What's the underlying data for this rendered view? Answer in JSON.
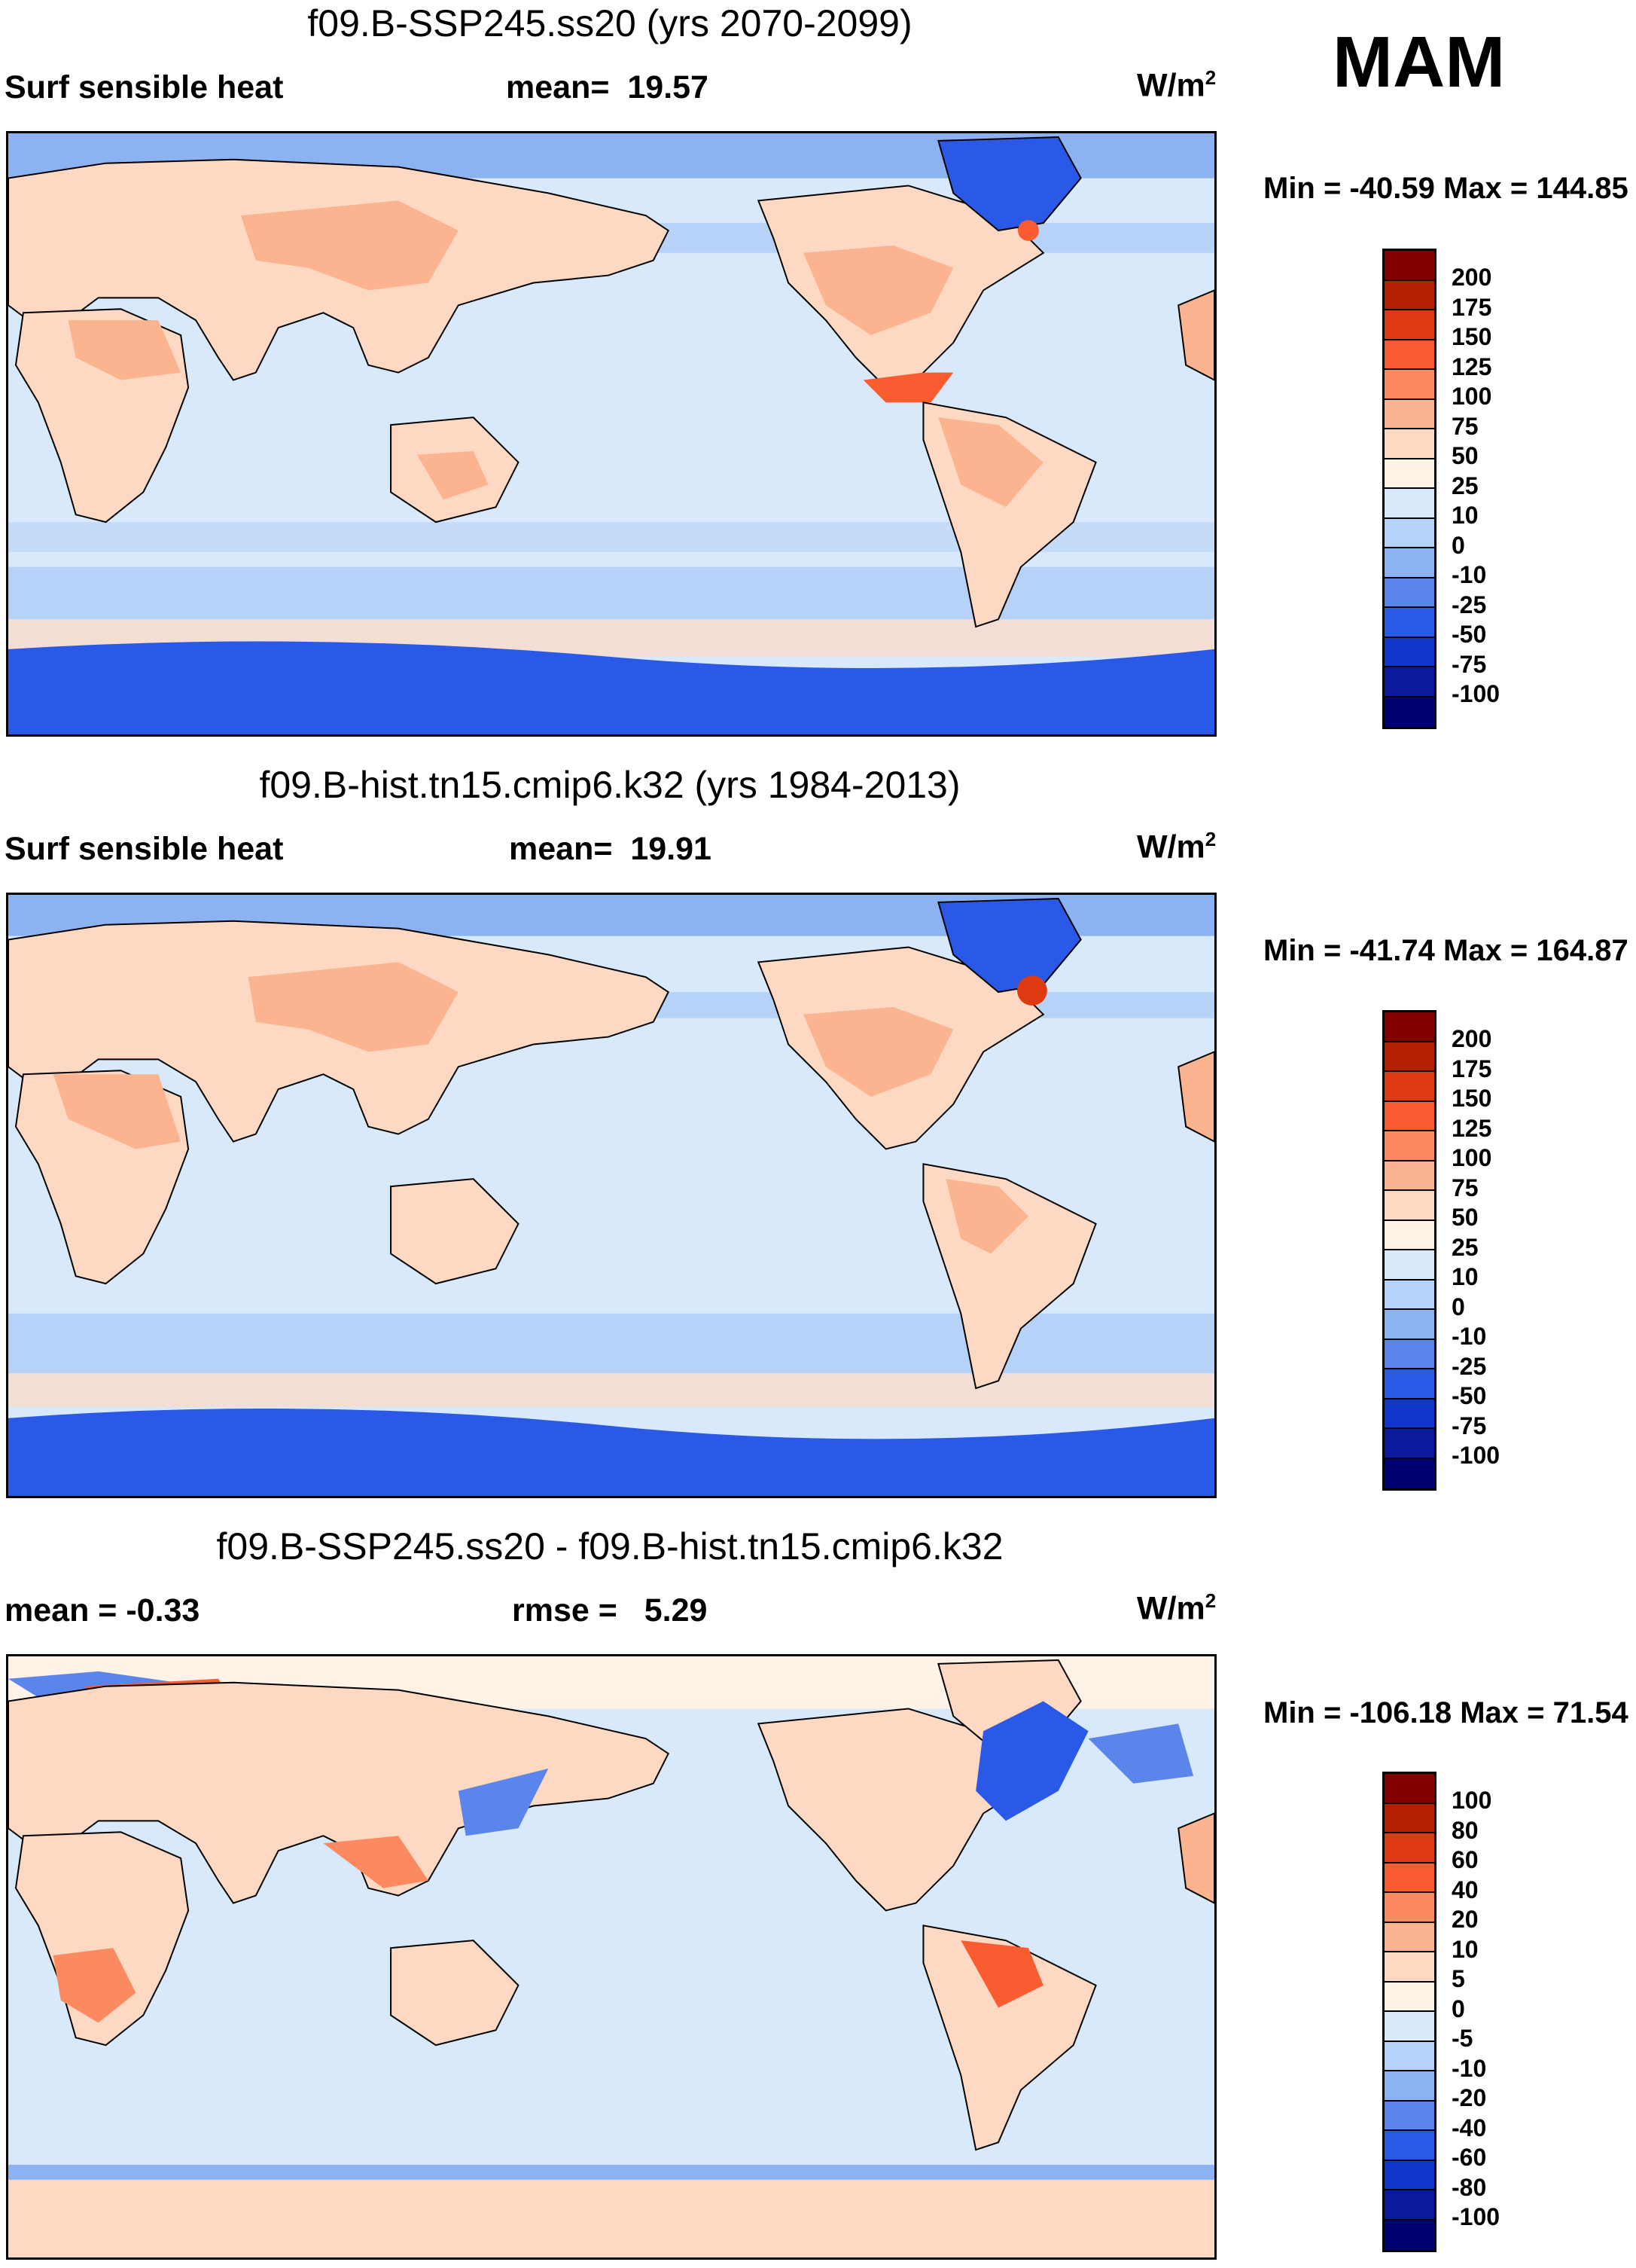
{
  "season": "MAM",
  "panels": [
    {
      "title": "f09.B-SSP245.ss20 (yrs 2070-2099)",
      "left_label": "Surf sensible heat",
      "stat_label": "mean=",
      "stat_value": "19.57",
      "units_base": "W/m",
      "units_exp": "2",
      "minmax": "Min = -40.59 Max = 144.85",
      "colorbar_labels": [
        "200",
        "175",
        "150",
        "125",
        "100",
        "75",
        "50",
        "25",
        "10",
        "0",
        "-10",
        "-25",
        "-50",
        "-75",
        "-100"
      ]
    },
    {
      "title": "f09.B-hist.tn15.cmip6.k32 (yrs 1984-2013)",
      "left_label": "Surf sensible heat",
      "stat_label": "mean=",
      "stat_value": "19.91",
      "units_base": "W/m",
      "units_exp": "2",
      "minmax": "Min = -41.74 Max = 164.87",
      "colorbar_labels": [
        "200",
        "175",
        "150",
        "125",
        "100",
        "75",
        "50",
        "25",
        "10",
        "0",
        "-10",
        "-25",
        "-50",
        "-75",
        "-100"
      ]
    },
    {
      "title": "f09.B-SSP245.ss20 - f09.B-hist.tn15.cmip6.k32",
      "left_label": "mean =  -0.33",
      "stat_label": "rmse =",
      "stat_value": "5.29",
      "units_base": "W/m",
      "units_exp": "2",
      "minmax": "Min = -106.18 Max =  71.54",
      "colorbar_labels": [
        "100",
        "80",
        "60",
        "40",
        "20",
        "10",
        "5",
        "0",
        "-5",
        "-10",
        "-20",
        "-40",
        "-60",
        "-80",
        "-100"
      ]
    }
  ],
  "colorbar_colors": [
    "#800000",
    "#b22000",
    "#dd3a12",
    "#f95c30",
    "#fb8a60",
    "#fcb38f",
    "#fdd8c3",
    "#fff2e6",
    "#d7e9fb",
    "#b7d2f8",
    "#8cb2f2",
    "#5a86ec",
    "#2a59e8",
    "#0f37cc",
    "#0a1a9a",
    "#000070"
  ],
  "map_colors": {
    "ocean": "#d7e9fb",
    "ocean_band": "#b7d2f8",
    "ocean_cold": "#8cb2f2",
    "antarctic": "#2a59e8",
    "land_warm": "#fcb38f",
    "land_mild": "#fdd8c3",
    "land_hot": "#f95c30",
    "greenland": "#2a59e8",
    "diff_land": "#fdd8c3",
    "diff_bg": "#d7e9fb"
  }
}
